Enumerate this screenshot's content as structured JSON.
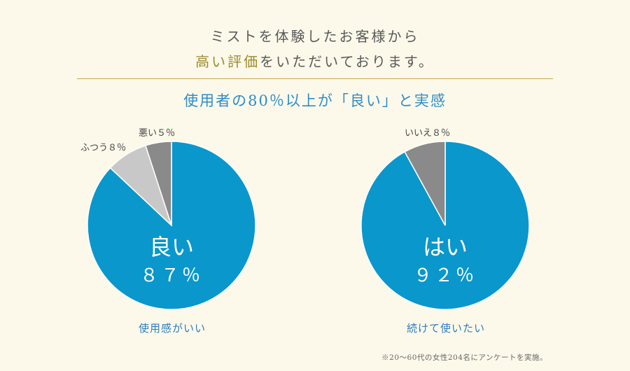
{
  "header": {
    "line1": "ミストを体験したお客様から",
    "line2_accent": "高い評価",
    "line2_rest": "をいただいております。"
  },
  "subheading": "使用者の80％以上が「良い」と実感",
  "colors": {
    "primary": "#0a97cc",
    "light_gray": "#c8c8c8",
    "mid_gray": "#8a8a8a",
    "accent_gold": "#9c8a2c",
    "heading_blue": "#2e8cc8"
  },
  "chart_data": [
    {
      "type": "pie",
      "caption": "使用感がいい",
      "slices": [
        {
          "label": "良い",
          "value": 87,
          "display": "87%",
          "color": "#0a97cc"
        },
        {
          "label": "ふつう",
          "value": 8,
          "display": "ふつう８％",
          "color": "#c8c8c8"
        },
        {
          "label": "悪い",
          "value": 5,
          "display": "悪い５％",
          "color": "#8a8a8a"
        }
      ],
      "main_label": "良い",
      "main_value": "８７％"
    },
    {
      "type": "pie",
      "caption": "続けて使いたい",
      "slices": [
        {
          "label": "はい",
          "value": 92,
          "display": "92%",
          "color": "#0a97cc"
        },
        {
          "label": "いいえ",
          "value": 8,
          "display": "いいえ８％",
          "color": "#8a8a8a"
        }
      ],
      "main_label": "はい",
      "main_value": "９２％"
    }
  ],
  "footnote": "※20～60代の女性204名にアンケートを実施。"
}
